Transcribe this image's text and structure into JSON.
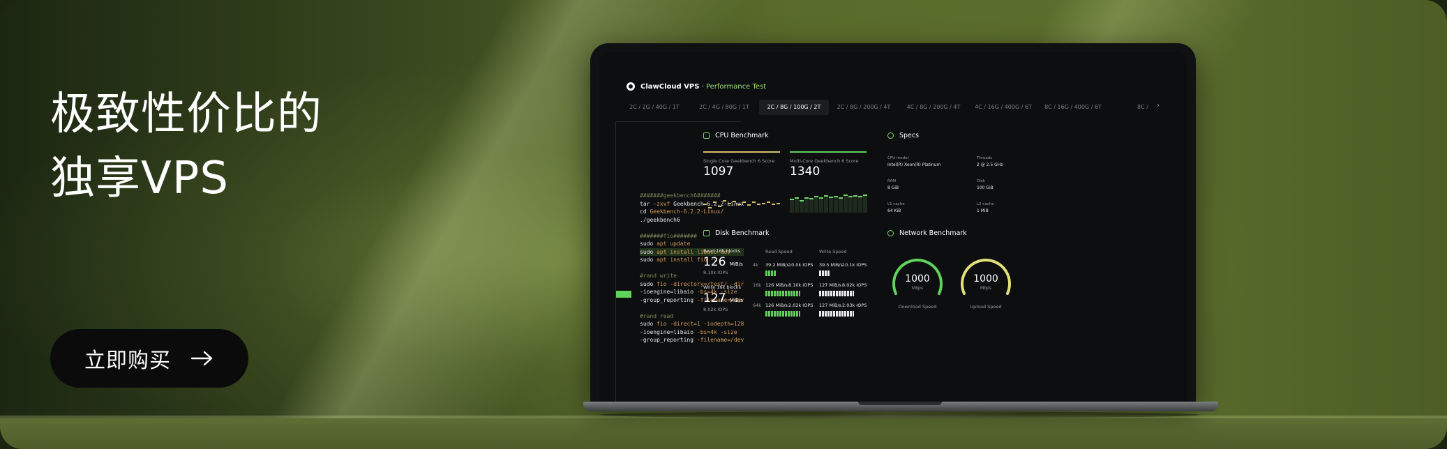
{
  "headline": {
    "line1": "极致性价比的",
    "line2": "独享VPS"
  },
  "cta": {
    "label": "立即购买",
    "icon": "arrow-right-icon"
  },
  "app": {
    "brand": "ClawCloud VPS",
    "separator": " · ",
    "subtitle": "Performance Test",
    "tabs": [
      "2C / 2G / 40G / 1T",
      "2C / 4G / 80G / 1T",
      "2C / 8G / 100G / 2T",
      "2C / 8G / 200G / 4T",
      "4C / 8G / 200G / 4T",
      "4C / 16G / 400G / 6T",
      "8C / 16G / 400G / 6T",
      "8C /"
    ],
    "active_tab": 2
  },
  "terminal": {
    "lines": [
      [
        {
          "t": "#######geekbench6#######",
          "c": "comment"
        }
      ],
      [
        {
          "t": "tar ",
          "c": "cmd"
        },
        {
          "t": "-zxvf ",
          "c": "arg"
        },
        {
          "t": "Geekbench-6.2.2-Linux",
          "c": "cmd"
        }
      ],
      [
        {
          "t": "cd ",
          "c": "cmd"
        },
        {
          "t": "Geekbench-6.2.2-Linux/",
          "c": "path"
        }
      ],
      [
        {
          "t": "./geekbench6",
          "c": "cmd"
        }
      ],
      [
        {
          "t": "",
          "c": "cmd"
        }
      ],
      [
        {
          "t": "#######fio#######",
          "c": "comment"
        }
      ],
      [
        {
          "t": "sudo ",
          "c": "cmd"
        },
        {
          "t": "apt update",
          "c": "arg"
        }
      ],
      [
        {
          "t": "sudo ",
          "c": "cmd"
        },
        {
          "t": "apt install libaio-dev",
          "c": "arg"
        }
      ],
      [
        {
          "t": "sudo ",
          "c": "cmd"
        },
        {
          "t": "apt install fio -y",
          "c": "arg"
        }
      ],
      [
        {
          "t": "",
          "c": "cmd"
        }
      ],
      [
        {
          "t": "#rand write",
          "c": "comment"
        }
      ],
      [
        {
          "t": "sudo ",
          "c": "cmd"
        },
        {
          "t": "fio -directory=/test/ -dir",
          "c": "arg"
        }
      ],
      [
        {
          "t": "-ioengine=libaio ",
          "c": "cmd"
        },
        {
          "t": "-bs=4k -size",
          "c": "arg"
        }
      ],
      [
        {
          "t": "-group_reporting ",
          "c": "cmd"
        },
        {
          "t": "-filename=/dev",
          "c": "arg"
        }
      ],
      [
        {
          "t": "",
          "c": "cmd"
        }
      ],
      [
        {
          "t": "#rand read",
          "c": "comment"
        }
      ],
      [
        {
          "t": "sudo ",
          "c": "cmd"
        },
        {
          "t": "fio -direct=1 -iodepth=128",
          "c": "arg"
        }
      ],
      [
        {
          "t": "-ioengine=libaio ",
          "c": "cmd"
        },
        {
          "t": "-bs=4k -size",
          "c": "arg"
        }
      ],
      [
        {
          "t": "-group_reporting ",
          "c": "cmd"
        },
        {
          "t": "-filename=/dev",
          "c": "arg"
        }
      ]
    ],
    "highlight_line": 7
  },
  "cpu": {
    "title": "CPU Benchmark",
    "single_label": "Single Core Geekbench 6 Score",
    "single_score": "1097",
    "multi_label": "Multi-Core Geekbench 6 Score",
    "multi_score": "1340"
  },
  "specs": {
    "title": "Specs",
    "items": [
      {
        "label": "CPU model",
        "value": "Intel(R) Xeon(R) Platinum"
      },
      {
        "label": "Threads",
        "value": "2 @ 2.5 GHz"
      },
      {
        "label": "RAM",
        "value": "8 GiB"
      },
      {
        "label": "Disk",
        "value": "100 GiB"
      },
      {
        "label": "L1 cache",
        "value": "64 KiB"
      },
      {
        "label": "L2 cache",
        "value": "1 MiB"
      }
    ]
  },
  "disk": {
    "title": "Disk Benchmark",
    "read_label": "Read 16k blocks",
    "read_value": "126",
    "read_unit": "MiB/s",
    "read_iops": "8.10k IOPS",
    "write_label": "Write 16k blocks",
    "write_value": "127",
    "write_unit": "MiB/s",
    "write_iops": "8.02k IOPS",
    "read_speed_header": "Read Speed",
    "write_speed_header": "Write Speed",
    "rows": [
      {
        "block": "4k",
        "read": "39.2 MiB/s",
        "read_iops": "10.0k IOPS",
        "write": "39.5 MiB/s",
        "write_iops": "10.1k IOPS",
        "read_fill": 0.22,
        "write_fill": 0.22
      },
      {
        "block": "16k",
        "read": "126 MiB/s",
        "read_iops": "8.10k IOPS",
        "write": "127 MiB/s",
        "write_iops": "8.02k IOPS",
        "read_fill": 0.7,
        "write_fill": 0.7
      },
      {
        "block": "64k",
        "read": "126 MiB/s",
        "read_iops": "2.02k IOPS",
        "write": "127 MiB/s",
        "write_iops": "2.03k IOPS",
        "read_fill": 0.7,
        "write_fill": 0.7
      }
    ]
  },
  "network": {
    "title": "Network Benchmark",
    "download_value": "1000",
    "download_unit": "Mbps",
    "download_label": "Download Speed",
    "upload_value": "1000",
    "upload_unit": "Mbps",
    "upload_label": "Upload Speed",
    "download_color": "#5fd35a",
    "upload_color": "#e3e07a"
  },
  "colors": {
    "accent_green": "#5fd35a",
    "accent_yellow": "#d8c06a"
  }
}
